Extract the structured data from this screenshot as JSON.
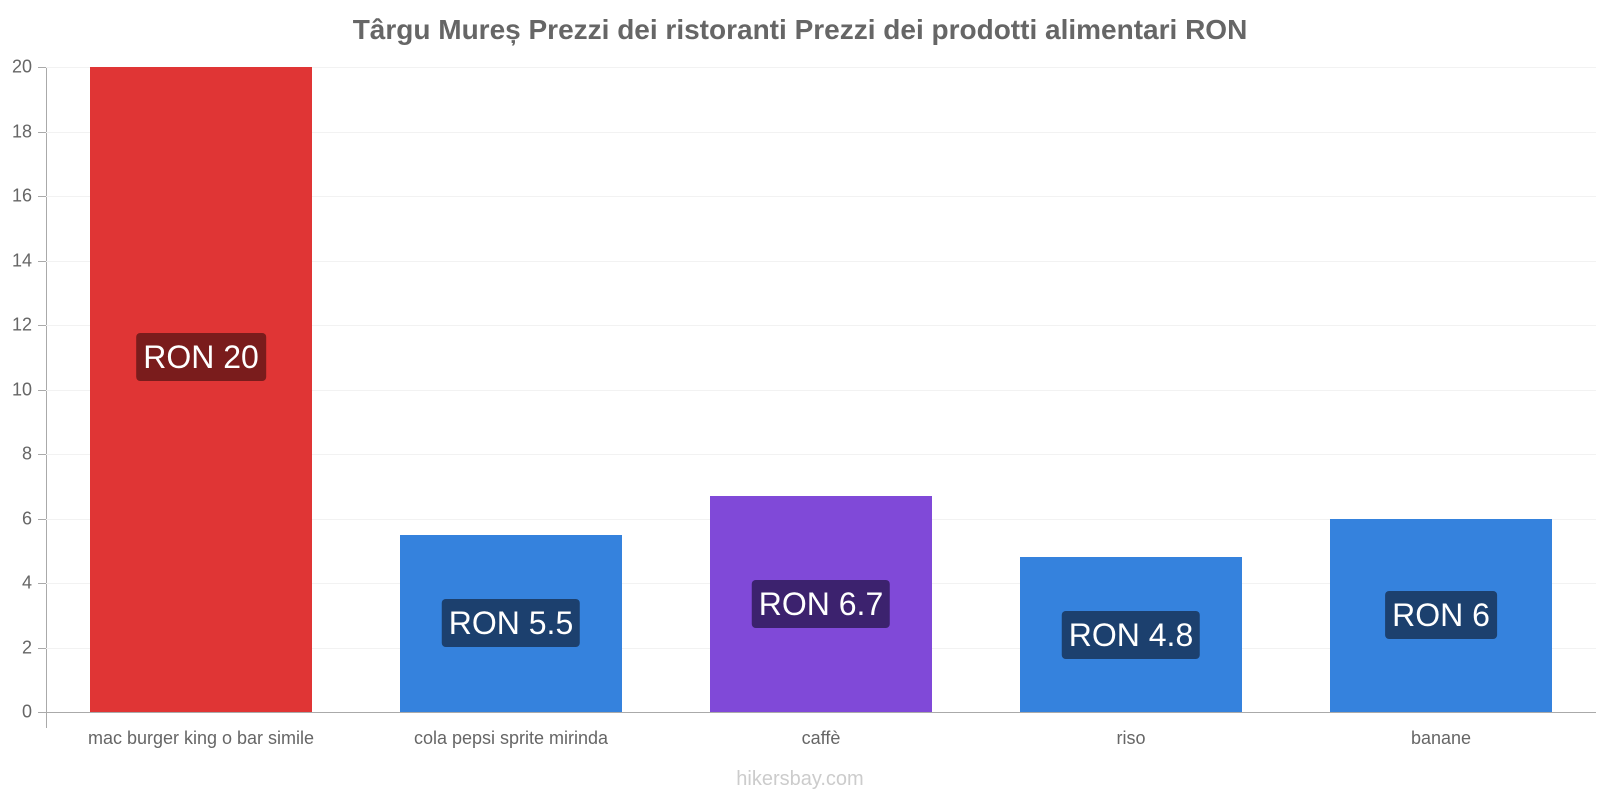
{
  "chart_data": {
    "type": "bar",
    "title": "Târgu Mureș Prezzi dei ristoranti Prezzi dei prodotti alimentari RON",
    "categories": [
      "mac burger king o bar simile",
      "cola pepsi sprite mirinda",
      "caffè",
      "riso",
      "banane"
    ],
    "values": [
      20,
      5.5,
      6.7,
      4.8,
      6
    ],
    "data_labels": [
      "RON 20",
      "RON 5.5",
      "RON 6.7",
      "RON 4.8",
      "RON 6"
    ],
    "bar_colors": [
      "#e03535",
      "#3582dd",
      "#8049d8",
      "#3582dd",
      "#3582dd"
    ],
    "label_colors": [
      "#7a1c1c",
      "#1c406e",
      "#3c226e",
      "#1c406e",
      "#1c406e"
    ],
    "xlabel": "",
    "ylabel": "",
    "ylim": [
      0,
      20
    ],
    "yticks": [
      "0",
      "2",
      "4",
      "6",
      "8",
      "10",
      "12",
      "14",
      "16",
      "18",
      "20"
    ],
    "grid": true,
    "legend": null
  },
  "footer": {
    "text": "hikersbay.com"
  }
}
